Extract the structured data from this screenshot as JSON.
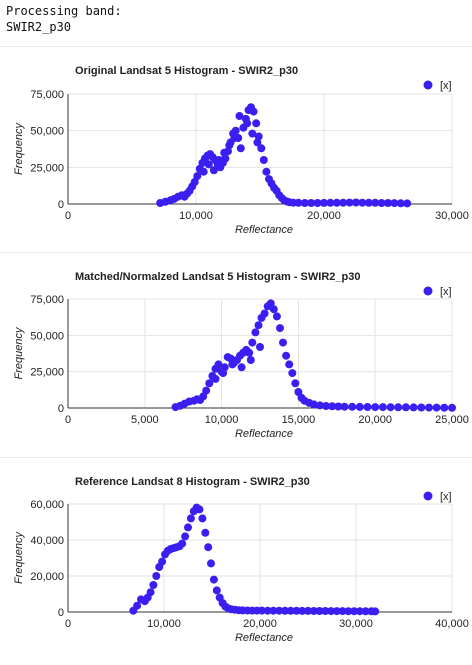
{
  "header": {
    "line1": "Processing band:",
    "line2": "SWIR2_p30"
  },
  "chart_data": [
    {
      "type": "scatter",
      "title": "Original Landsat 5 Histogram - SWIR2_p30",
      "xlabel": "Reflectance",
      "ylabel": "Frequency",
      "xlim": [
        0,
        30000
      ],
      "ylim": [
        0,
        75000
      ],
      "xticks": [
        0,
        10000,
        20000,
        30000
      ],
      "xtick_labels": [
        "0",
        "10,000",
        "20,000",
        "30,000"
      ],
      "yticks": [
        0,
        25000,
        50000,
        75000
      ],
      "ytick_labels": [
        "0",
        "25,000",
        "50,000",
        "75,000"
      ],
      "legend": {
        "label": "[x]",
        "position": "top-right"
      },
      "color": "#3b1ff0",
      "grid": true,
      "series": [
        {
          "x": [
            7200,
            7600,
            8000,
            8300,
            8600,
            8900,
            9100,
            9300,
            9500,
            9700,
            9900,
            10100,
            10300,
            10500,
            10700,
            10900,
            11100,
            11300,
            11500,
            11700,
            11900,
            12100,
            12300,
            12500,
            12700,
            12900,
            13100,
            13300,
            13500,
            13700,
            13900,
            14100,
            14300,
            14500,
            14700,
            14900,
            15100,
            15300,
            15500,
            15700,
            15900,
            16100,
            16300,
            16500,
            16700,
            16900,
            17100,
            17300,
            17600,
            18000,
            18500,
            19000,
            19500,
            20000,
            20500,
            21000,
            21500,
            22000,
            22500,
            23000,
            23500,
            24000,
            24500,
            25000,
            25500,
            26000,
            26500,
            10600,
            11000,
            11400,
            11800,
            12200,
            12600,
            13000,
            13400,
            14000,
            14400,
            14800
          ],
          "y": [
            700,
            1500,
            2500,
            3500,
            5000,
            6000,
            5000,
            7000,
            9000,
            12000,
            15000,
            19000,
            24000,
            28000,
            31000,
            33000,
            34000,
            32000,
            30000,
            27000,
            25000,
            28000,
            31000,
            36000,
            42000,
            48000,
            50000,
            45000,
            38000,
            52000,
            58000,
            64000,
            66000,
            63000,
            55000,
            46000,
            38000,
            30000,
            22000,
            17000,
            14000,
            11000,
            9000,
            6000,
            4000,
            2500,
            1700,
            1200,
            900,
            800,
            700,
            650,
            700,
            750,
            800,
            850,
            900,
            950,
            1000,
            900,
            850,
            800,
            700,
            650,
            600,
            500,
            400,
            22000,
            27000,
            23000,
            30000,
            35000,
            40000,
            45000,
            60000,
            55000,
            48000,
            42000
          ]
        }
      ]
    },
    {
      "type": "scatter",
      "title": "Matched/Normalzed Landsat 5 Histogram - SWIR2_p30",
      "xlabel": "Reflectance",
      "ylabel": "Frequency",
      "xlim": [
        0,
        25000
      ],
      "ylim": [
        0,
        75000
      ],
      "xticks": [
        0,
        5000,
        10000,
        15000,
        20000,
        25000
      ],
      "xtick_labels": [
        "0",
        "5,000",
        "10,000",
        "15,000",
        "20,000",
        "25,000"
      ],
      "yticks": [
        0,
        25000,
        50000,
        75000
      ],
      "ytick_labels": [
        "0",
        "25,000",
        "50,000",
        "75,000"
      ],
      "legend": {
        "label": "[x]",
        "position": "top-right"
      },
      "color": "#3b1ff0",
      "grid": true,
      "series": [
        {
          "x": [
            7000,
            7300,
            7600,
            7900,
            8200,
            8400,
            8600,
            8800,
            9000,
            9200,
            9400,
            9600,
            9800,
            10000,
            10200,
            10400,
            10600,
            10800,
            11000,
            11200,
            11400,
            11600,
            11800,
            12000,
            12200,
            12400,
            12600,
            12800,
            13000,
            13200,
            13400,
            13600,
            13800,
            14000,
            14200,
            14400,
            14600,
            14800,
            15000,
            15200,
            15400,
            15700,
            16000,
            16400,
            16800,
            17200,
            17600,
            18000,
            18500,
            19000,
            19500,
            20000,
            20500,
            21000,
            21500,
            22000,
            22500,
            23000,
            23500,
            24000,
            24500,
            25000,
            9600,
            10100,
            10700,
            11300,
            11900,
            12500
          ],
          "y": [
            600,
            1500,
            3000,
            4500,
            5000,
            6000,
            5500,
            8000,
            12000,
            17000,
            22000,
            27000,
            30000,
            25000,
            28000,
            35000,
            34000,
            31000,
            33000,
            36000,
            38000,
            40000,
            38000,
            45000,
            52000,
            57000,
            62000,
            65000,
            70000,
            72000,
            68000,
            63000,
            55000,
            45000,
            36000,
            30000,
            24000,
            17000,
            11000,
            7000,
            5000,
            3500,
            2500,
            1800,
            1400,
            1200,
            1000,
            900,
            800,
            750,
            700,
            650,
            600,
            550,
            500,
            450,
            400,
            350,
            300,
            250,
            200,
            150,
            20000,
            24000,
            30000,
            28000,
            33000,
            42000
          ]
        }
      ]
    },
    {
      "type": "scatter",
      "title": "Reference Landsat 8 Histogram - SWIR2_p30",
      "xlabel": "Reflectance",
      "ylabel": "Frequency",
      "xlim": [
        0,
        40000
      ],
      "ylim": [
        0,
        60000
      ],
      "xticks": [
        0,
        10000,
        20000,
        30000,
        40000
      ],
      "xtick_labels": [
        "0",
        "10,000",
        "20,000",
        "30,000",
        "40,000"
      ],
      "yticks": [
        0,
        20000,
        40000,
        60000
      ],
      "ytick_labels": [
        "0",
        "20,000",
        "40,000",
        "60,000"
      ],
      "legend": {
        "label": "[x]",
        "position": "top-right"
      },
      "color": "#3b1ff0",
      "grid": true,
      "series": [
        {
          "x": [
            6800,
            7200,
            7600,
            8000,
            8300,
            8600,
            8900,
            9200,
            9500,
            9800,
            10100,
            10400,
            10700,
            11000,
            11300,
            11600,
            11900,
            12200,
            12500,
            12800,
            13100,
            13400,
            13700,
            14000,
            14300,
            14600,
            14900,
            15200,
            15500,
            15800,
            16100,
            16400,
            16700,
            17000,
            17400,
            17800,
            18200,
            18700,
            19200,
            19700,
            20200,
            20800,
            21400,
            22000,
            22600,
            23200,
            23800,
            24400,
            25000,
            25600,
            26200,
            26800,
            27400,
            28000,
            28600,
            29200,
            29800,
            30400,
            31000,
            31600,
            32000
          ],
          "y": [
            700,
            3500,
            7000,
            6000,
            8000,
            11000,
            15000,
            20000,
            25000,
            28000,
            32000,
            34000,
            35000,
            35500,
            36000,
            36500,
            38000,
            42000,
            47000,
            52000,
            56000,
            58000,
            57000,
            52000,
            44000,
            36000,
            27000,
            18000,
            12000,
            8000,
            5000,
            3000,
            2000,
            1500,
            1200,
            1000,
            900,
            850,
            800,
            780,
            760,
            740,
            720,
            700,
            680,
            660,
            640,
            620,
            600,
            580,
            560,
            540,
            520,
            500,
            480,
            460,
            440,
            420,
            400,
            380,
            360
          ]
        }
      ]
    }
  ]
}
